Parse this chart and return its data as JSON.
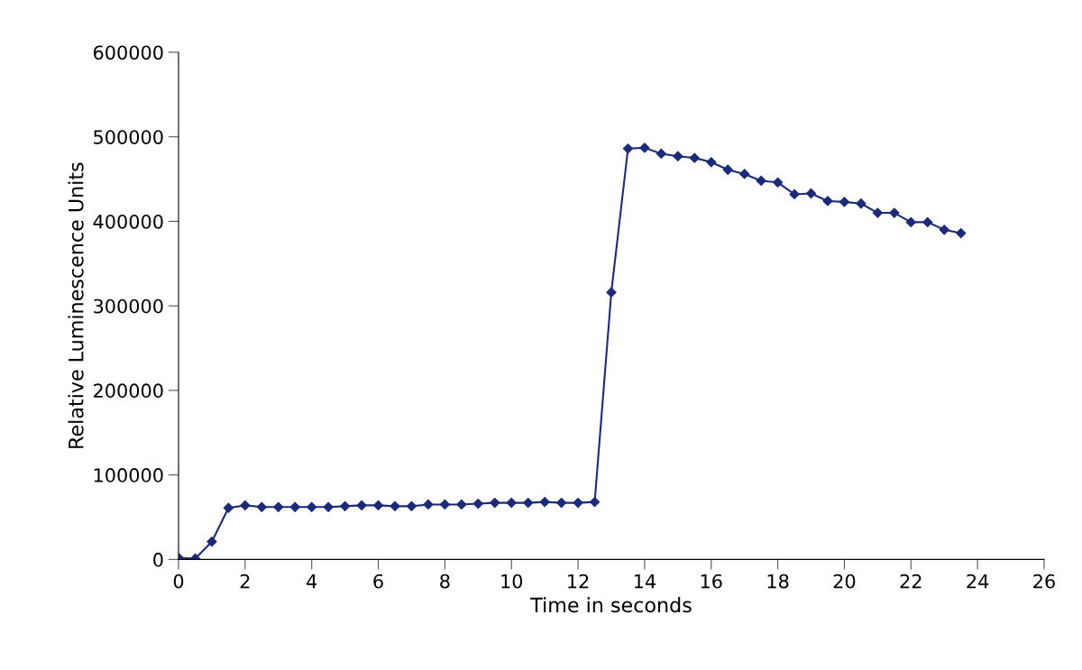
{
  "chart_data": {
    "type": "line",
    "xlabel": "Time in seconds",
    "ylabel": "Relative Luminescence Units",
    "x": [
      0,
      0.5,
      1,
      1.5,
      2,
      2.5,
      3,
      3.5,
      4,
      4.5,
      5,
      5.5,
      6,
      6.5,
      7,
      7.5,
      8,
      8.5,
      9,
      9.5,
      10,
      10.5,
      11,
      11.5,
      12,
      12.5,
      13,
      13.5,
      14,
      14.5,
      15,
      15.5,
      16,
      16.5,
      17,
      17.5,
      18,
      18.5,
      19,
      19.5,
      20,
      20.5,
      21,
      21.5,
      22,
      22.5,
      23,
      23.5
    ],
    "series": [
      {
        "color": "#1c2a78",
        "values": [
          2000,
          1000,
          21000,
          61000,
          64000,
          62000,
          62000,
          62000,
          62000,
          62000,
          63000,
          64000,
          64000,
          63000,
          63000,
          65000,
          65000,
          65000,
          66000,
          67000,
          67000,
          67000,
          68000,
          67000,
          67000,
          68000,
          316000,
          486000,
          487000,
          480000,
          477000,
          475000,
          470000,
          461000,
          456000,
          448000,
          446000,
          432000,
          433000,
          424000,
          423000,
          421000,
          410000,
          410000,
          399000,
          399000,
          390000,
          386000
        ]
      }
    ],
    "xlim": [
      0,
      26
    ],
    "xticks": [
      0,
      2,
      4,
      6,
      8,
      10,
      12,
      14,
      16,
      18,
      20,
      22,
      24,
      26
    ],
    "ylim": [
      0,
      600000
    ],
    "yticks": [
      0,
      100000,
      200000,
      300000,
      400000,
      500000,
      600000
    ],
    "marker": "diamond",
    "line_style": "solid",
    "grid": false,
    "legend": false
  }
}
